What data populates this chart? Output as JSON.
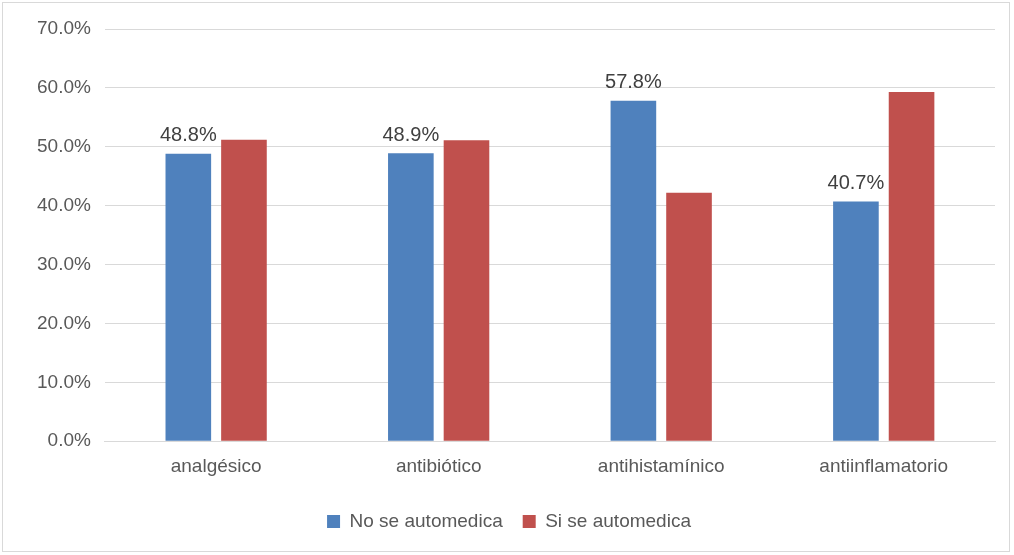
{
  "chart_data": {
    "type": "bar",
    "categories": [
      "analgésico",
      "antibiótico",
      "antihistamínico",
      "antiinflamatorio"
    ],
    "series": [
      {
        "name": "No se automedica",
        "color": "#4f81bd",
        "values": [
          48.8,
          48.9,
          57.8,
          40.7
        ],
        "value_labels": [
          "48.8%",
          "48.9%",
          "57.8%",
          "40.7%"
        ]
      },
      {
        "name": "Si se automedica",
        "color": "#c0504d",
        "values": [
          51.2,
          51.1,
          42.2,
          59.3
        ]
      }
    ],
    "ylim": [
      0,
      70
    ],
    "yticks": [
      {
        "value": 0,
        "label": "0.0%"
      },
      {
        "value": 10,
        "label": "10.0%"
      },
      {
        "value": 20,
        "label": "20.0%"
      },
      {
        "value": 30,
        "label": "30.0%"
      },
      {
        "value": 40,
        "label": "40.0%"
      },
      {
        "value": 50,
        "label": "50.0%"
      },
      {
        "value": 60,
        "label": "60.0%"
      },
      {
        "value": 70,
        "label": "70.0%"
      }
    ],
    "grid": "y",
    "legend": "bottom"
  }
}
